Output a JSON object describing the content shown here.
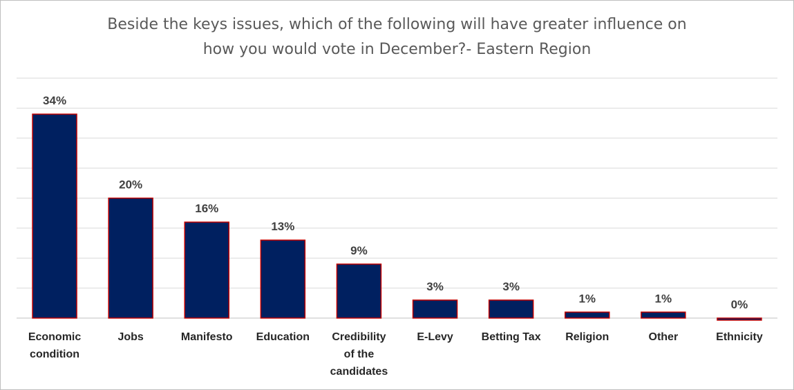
{
  "chart_data": {
    "type": "bar",
    "title_lines": [
      "Beside the keys issues, which of the following will have greater influence on",
      "how you would vote in December?- Eastern Region"
    ],
    "categories": [
      [
        "Economic",
        "condition"
      ],
      [
        "Jobs"
      ],
      [
        "Manifesto"
      ],
      [
        "Education"
      ],
      [
        "Credibility",
        "of the",
        "candidates"
      ],
      [
        "E-Levy"
      ],
      [
        "Betting Tax"
      ],
      [
        "Religion"
      ],
      [
        "Other"
      ],
      [
        "Ethnicity"
      ]
    ],
    "values": [
      34,
      20,
      16,
      13,
      9,
      3,
      3,
      1,
      1,
      0
    ],
    "value_labels": [
      "34%",
      "20%",
      "16%",
      "13%",
      "9%",
      "3%",
      "3%",
      "1%",
      "1%",
      "0%"
    ],
    "ylim": [
      0,
      40
    ],
    "grid": true,
    "bar_color": "#002060",
    "bar_border_color": "#c00000"
  }
}
